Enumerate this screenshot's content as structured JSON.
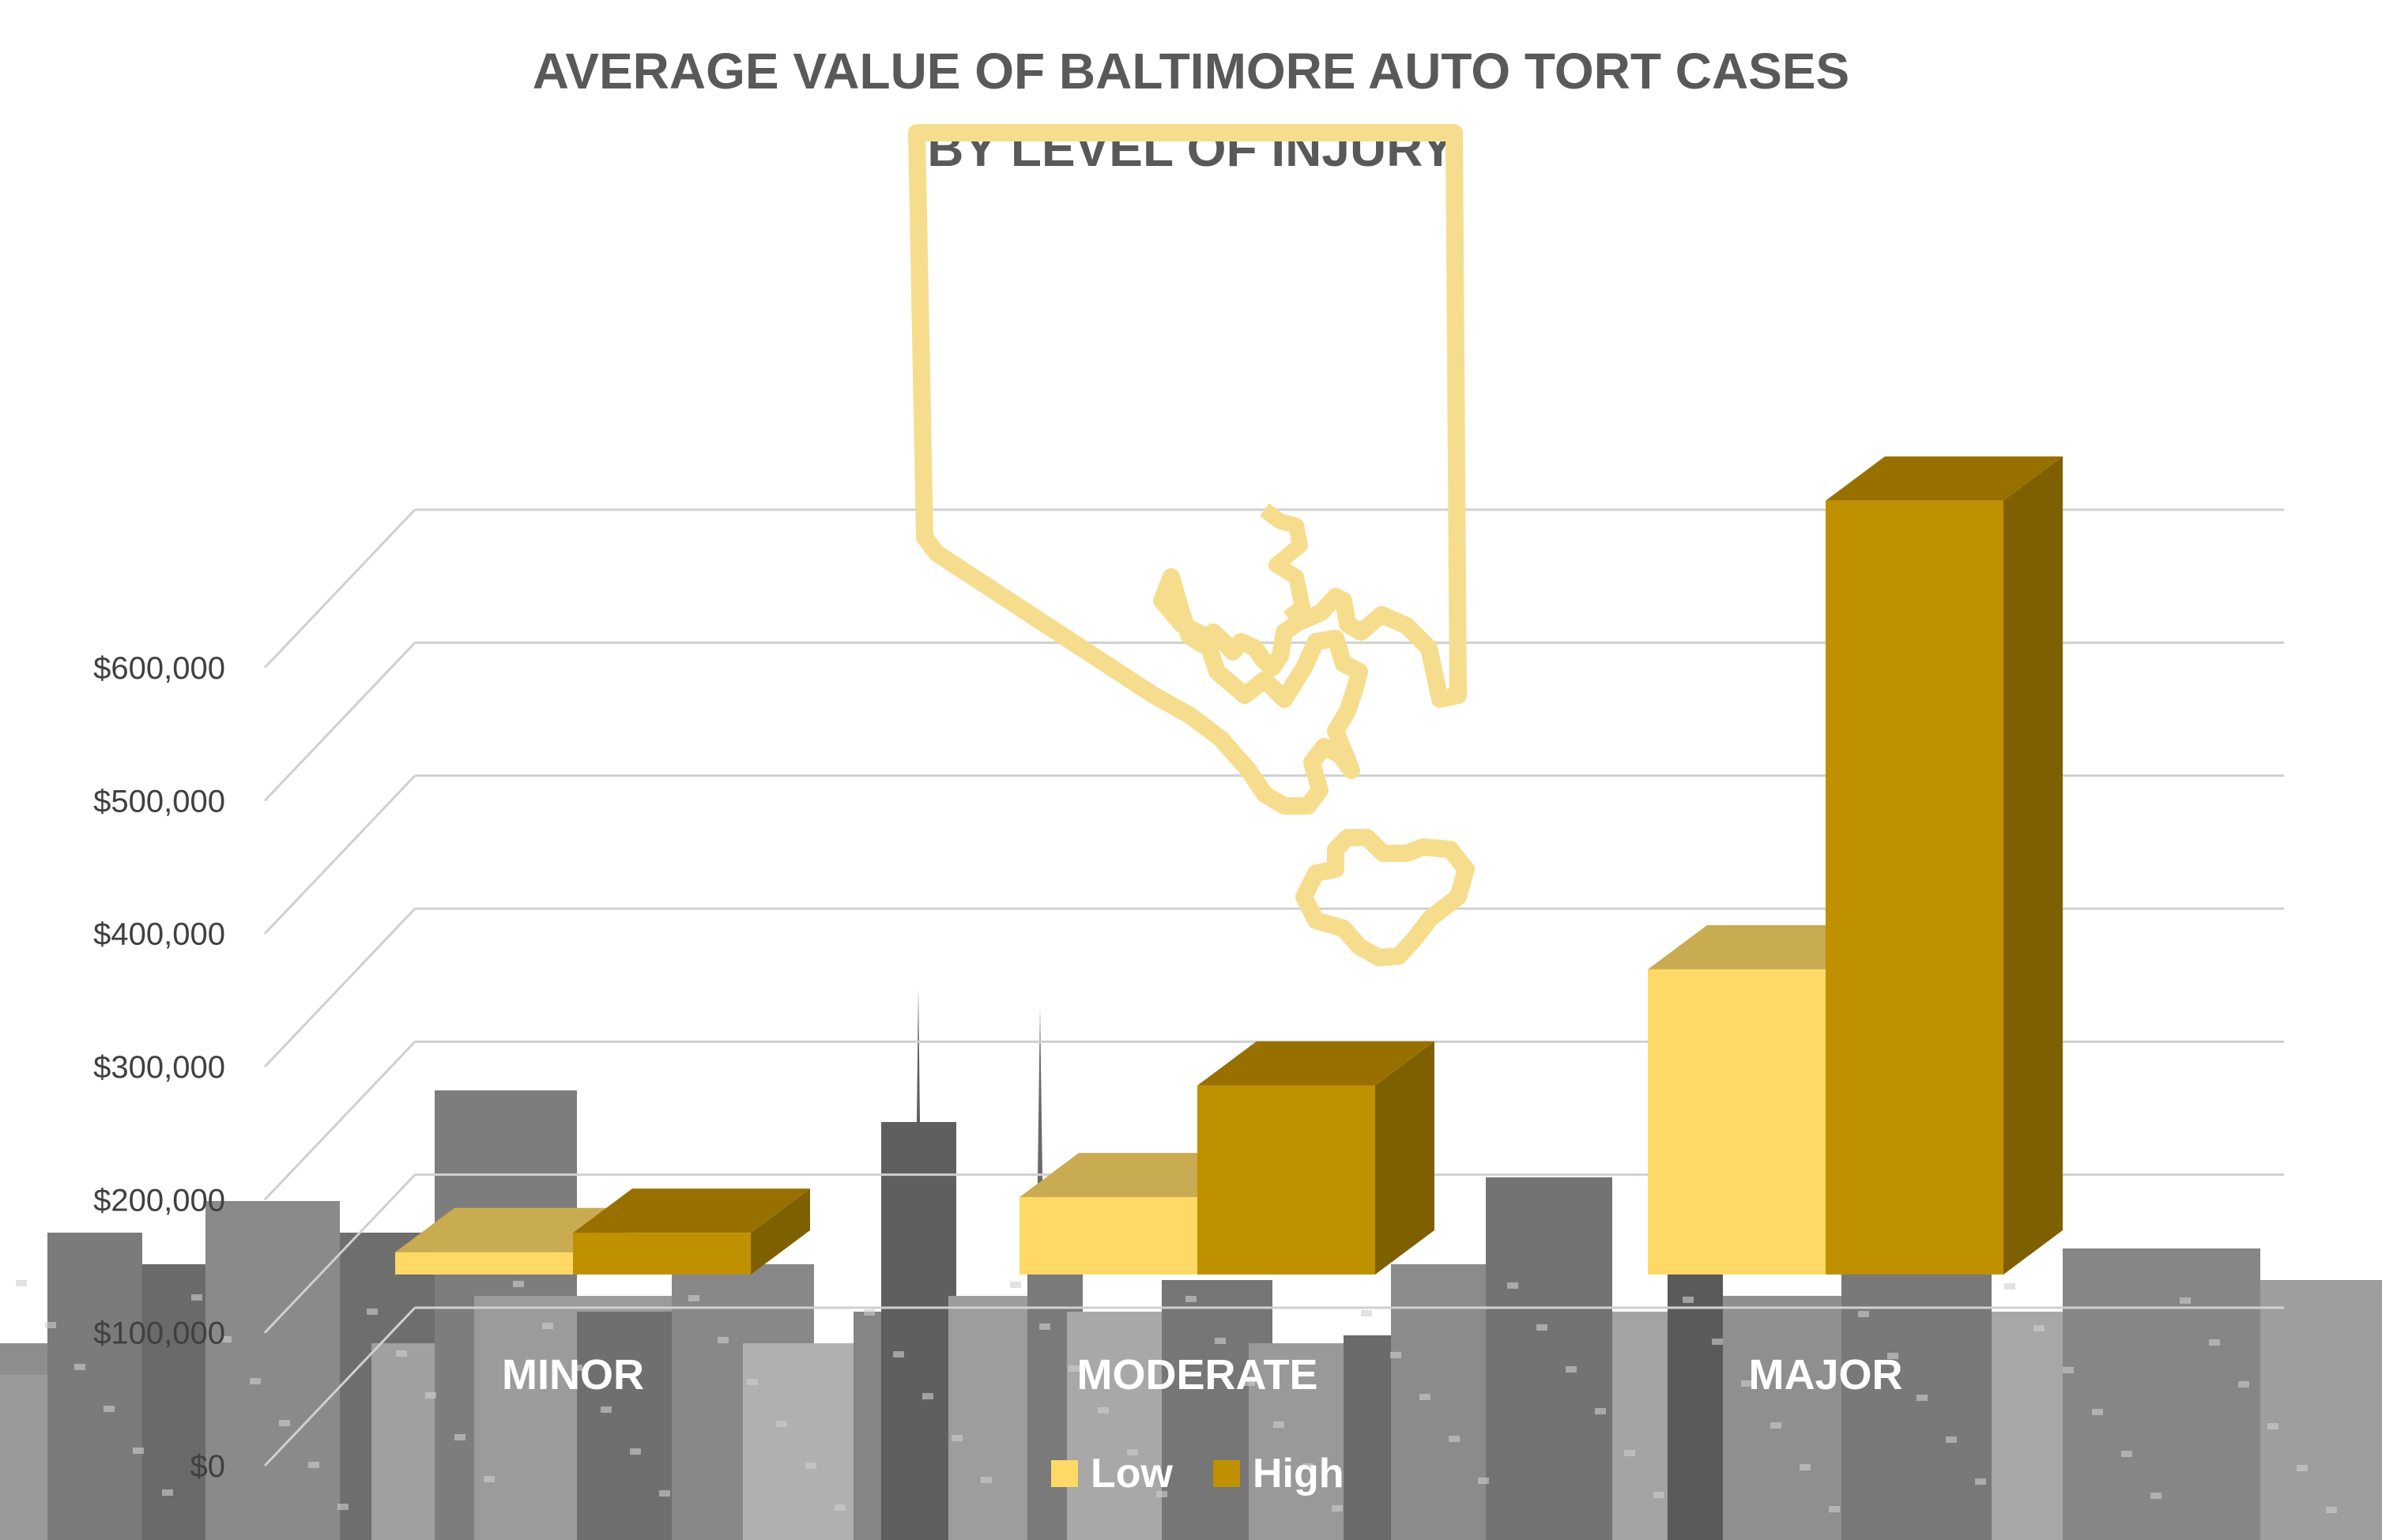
{
  "chart_data": {
    "type": "bar",
    "title": "AVERAGE VALUE OF BALTIMORE AUTO TORT CASES",
    "subtitle": "BY LEVEL OF INJURY",
    "categories": [
      "MINOR",
      "MODERATE",
      "MAJOR"
    ],
    "series": [
      {
        "name": "Low",
        "color": "#FFD966",
        "values": [
          15000,
          52000,
          205000
        ]
      },
      {
        "name": "High",
        "color": "#BF9000",
        "values": [
          28000,
          127000,
          520000
        ]
      }
    ],
    "ylim": [
      0,
      600000
    ],
    "yticks": [
      0,
      100000,
      200000,
      300000,
      400000,
      500000,
      600000
    ],
    "ytick_labels": [
      "$0",
      "$100,000",
      "$200,000",
      "$300,000",
      "$400,000",
      "$500,000",
      "$600,000"
    ],
    "grid": true,
    "legend_position": "bottom",
    "style": "3d-clustered-column"
  },
  "colors": {
    "low_front": "#FFD966",
    "low_top": "#C9AB52",
    "high_front": "#BF9000",
    "high_top": "#987000",
    "high_side": "#7F6000",
    "outline_map": "#F6DD8E",
    "title": "#595959"
  }
}
